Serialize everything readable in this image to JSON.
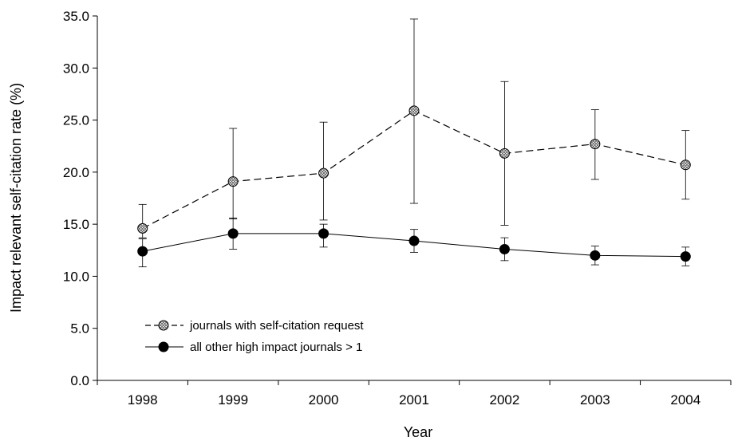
{
  "chart_data": {
    "type": "line",
    "title": "",
    "xlabel": "Year",
    "ylabel": "Impact relevant self-citation rate (%)",
    "categories": [
      "1998",
      "1999",
      "2000",
      "2001",
      "2002",
      "2003",
      "2004"
    ],
    "ylim": [
      0,
      35
    ],
    "yticks": [
      "0.0",
      "5.0",
      "10.0",
      "15.0",
      "20.0",
      "25.0",
      "30.0",
      "35.0"
    ],
    "grid": false,
    "legend_position": "bottom-left",
    "series": [
      {
        "name": "journals with self-citation request",
        "marker": "crosshatched-circle",
        "line_style": "dashed",
        "values": [
          14.6,
          19.1,
          19.9,
          25.9,
          21.8,
          22.7,
          20.7
        ],
        "error_upper": [
          16.9,
          24.2,
          24.8,
          34.7,
          28.7,
          26.0,
          24.0
        ],
        "error_lower": [
          13.7,
          15.5,
          15.4,
          17.0,
          14.9,
          19.3,
          17.4
        ]
      },
      {
        "name": "all other high impact journals > 1",
        "marker": "filled-circle",
        "line_style": "solid",
        "values": [
          12.4,
          14.1,
          14.1,
          13.4,
          12.6,
          12.0,
          11.9
        ],
        "error_upper": [
          13.6,
          15.6,
          15.0,
          14.5,
          13.7,
          12.9,
          12.8
        ],
        "error_lower": [
          10.9,
          12.6,
          12.8,
          12.3,
          11.5,
          11.1,
          11.0
        ]
      }
    ]
  }
}
